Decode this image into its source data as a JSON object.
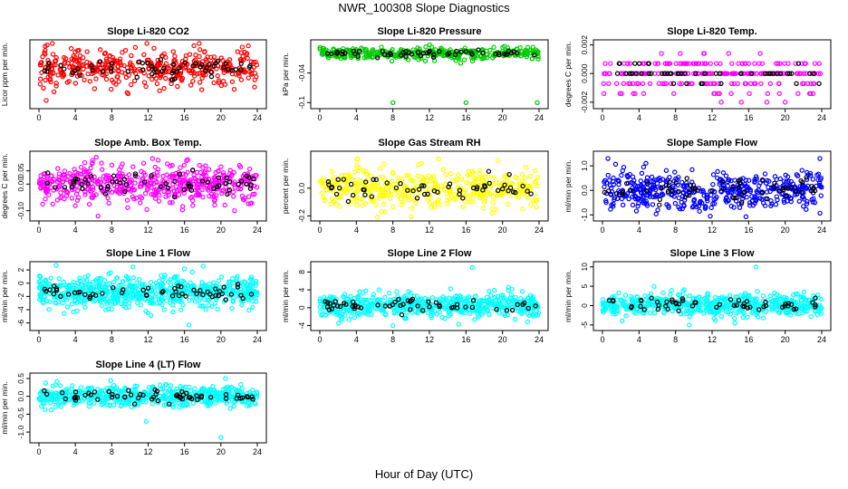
{
  "figure": {
    "title": "NWR_100308  Slope Diagnostics",
    "xlabel": "Hour of Day (UTC)"
  },
  "chart_data": [
    {
      "type": "scatter",
      "title": "Slope Li-820 CO2",
      "ylabel": "Licor ppm per min.",
      "xlim": [
        0,
        24
      ],
      "xticks": [
        0,
        4,
        8,
        12,
        16,
        20,
        24
      ],
      "ylim": [
        -0.125,
        0.075
      ],
      "yticks": [],
      "color": "#ff0000",
      "center": -0.005,
      "spread": 0.03,
      "n": 420,
      "black_n": 60,
      "series": [
        {
          "name": "",
          "points": [
            [
              0.9,
              0.07
            ],
            [
              0.8,
              -0.11
            ],
            [
              0.6,
              0.045
            ],
            [
              0.5,
              -0.07
            ],
            [
              1.0,
              0.02
            ]
          ]
        }
      ]
    },
    {
      "type": "scatter",
      "title": "Slope Li-820 Pressure",
      "ylabel": "kPa per min.",
      "xlim": [
        0,
        24
      ],
      "xticks": [
        0,
        4,
        8,
        12,
        16,
        20,
        24
      ],
      "ylim": [
        -0.105,
        0.02
      ],
      "yticks": [
        -0.1,
        -0.04
      ],
      "color": "#00cc00",
      "center": 0.0,
      "spread": 0.006,
      "n": 330,
      "black_n": 55,
      "series": [
        {
          "name": "",
          "points": [
            [
              8.0,
              -0.1
            ],
            [
              16.0,
              -0.1
            ],
            [
              23.8,
              -0.1
            ]
          ]
        }
      ]
    },
    {
      "type": "scatter",
      "title": "Slope Li-820 Temp.",
      "ylabel": "degrees C per min.",
      "xlim": [
        0,
        24
      ],
      "xticks": [
        0,
        4,
        8,
        12,
        16,
        20,
        24
      ],
      "ylim": [
        -0.0022,
        0.0021
      ],
      "yticks": [
        -0.002,
        0.0,
        0.002
      ],
      "yticklabels": [
        "-0.002",
        "0.000",
        "0.002"
      ],
      "color": "#ff00ff",
      "levels": [
        0.0,
        0.0007,
        -0.0007,
        -0.0014,
        0.0014
      ],
      "n": 260,
      "black_n": 50,
      "series": [
        {
          "name": "",
          "points": [
            [
              13.0,
              -0.002
            ],
            [
              15.2,
              -0.002
            ],
            [
              18.0,
              -0.002
            ],
            [
              20.0,
              -0.002
            ]
          ]
        }
      ]
    },
    {
      "type": "scatter",
      "title": "Slope Amb. Box Temp.",
      "ylabel": "degrees C per min.",
      "xlim": [
        0,
        24
      ],
      "xticks": [
        0,
        4,
        8,
        12,
        16,
        20,
        24
      ],
      "ylim": [
        -0.125,
        0.11
      ],
      "yticks": [
        -0.1,
        0.0,
        0.05
      ],
      "yticklabels": [
        "-0.10",
        "0.00",
        "0.05"
      ],
      "color": "#ff00ff",
      "center": 0.0,
      "spread": 0.035,
      "n": 520,
      "black_n": 60,
      "series": [
        {
          "name": "",
          "points": [
            [
              6.5,
              -0.12
            ],
            [
              13.1,
              0.09
            ],
            [
              21.5,
              -0.1
            ]
          ]
        }
      ]
    },
    {
      "type": "scatter",
      "title": "Slope Gas Stream RH",
      "ylabel": "percent per min.",
      "xlim": [
        0,
        24
      ],
      "xticks": [
        0,
        4,
        8,
        12,
        16,
        20,
        24
      ],
      "ylim": [
        -0.21,
        0.24
      ],
      "yticks": [
        -0.2,
        0.0
      ],
      "yticklabels": [
        "-0.2",
        "0.0"
      ],
      "color": "#ffff00",
      "center": 0.0,
      "spread": 0.07,
      "n": 420,
      "black_n": 55,
      "series": [
        {
          "name": "",
          "points": [
            [
              4.1,
              0.21
            ],
            [
              13.0,
              0.21
            ],
            [
              19.5,
              0.2
            ]
          ]
        }
      ]
    },
    {
      "type": "scatter",
      "title": "Slope Sample Flow",
      "ylabel": "ml/min per min.",
      "xlim": [
        0,
        24
      ],
      "xticks": [
        0,
        4,
        8,
        12,
        16,
        20,
        24
      ],
      "ylim": [
        -1.1,
        1.45
      ],
      "yticks": [
        -1.0,
        0.0,
        1.0
      ],
      "yticklabels": [
        "-1.0",
        "0.0",
        "1.0"
      ],
      "color": "#0000ff",
      "center": 0.0,
      "spread": 0.38,
      "n": 470,
      "black_n": 60,
      "series": [
        {
          "name": "",
          "points": [
            [
              0.6,
              1.3
            ],
            [
              11.8,
              -1.05
            ],
            [
              23.8,
              1.3
            ]
          ]
        }
      ]
    },
    {
      "type": "scatter",
      "title": "Slope Line 1 Flow",
      "ylabel": "ml/min per min.",
      "xlim": [
        0,
        24
      ],
      "xticks": [
        0,
        4,
        8,
        12,
        16,
        20,
        24
      ],
      "ylim": [
        -6.6,
        2.7
      ],
      "yticks": [
        -6,
        -4,
        -2,
        0,
        2
      ],
      "color": "#00ffff",
      "center": -1.3,
      "spread": 1.2,
      "n": 620,
      "black_n": 55,
      "series": [
        {
          "name": "",
          "points": [
            [
              16.5,
              -6.3
            ],
            [
              4.2,
              -4.2
            ],
            [
              12.0,
              -4.5
            ]
          ]
        }
      ]
    },
    {
      "type": "scatter",
      "title": "Slope Line 2 Flow",
      "ylabel": "ml/min per min.",
      "xlim": [
        0,
        24
      ],
      "xticks": [
        0,
        4,
        8,
        12,
        16,
        20,
        24
      ],
      "ylim": [
        -4.3,
        9.5
      ],
      "yticks": [
        -4,
        0,
        4,
        8
      ],
      "color": "#00ffff",
      "center": 0.5,
      "spread": 1.3,
      "n": 560,
      "black_n": 55,
      "series": [
        {
          "name": "",
          "points": [
            [
              16.7,
              9.0
            ],
            [
              8.0,
              -4.0
            ],
            [
              15.2,
              -3.7
            ]
          ]
        }
      ]
    },
    {
      "type": "scatter",
      "title": "Slope Line 3 Flow",
      "ylabel": "ml/min per min.",
      "xlim": [
        0,
        24
      ],
      "xticks": [
        0,
        4,
        8,
        12,
        16,
        20,
        24
      ],
      "ylim": [
        -5.5,
        10.4
      ],
      "yticks": [
        -5,
        0,
        5,
        10
      ],
      "color": "#00ffff",
      "center": 0.3,
      "spread": 1.4,
      "n": 560,
      "black_n": 55,
      "series": [
        {
          "name": "",
          "points": [
            [
              16.8,
              10.0
            ],
            [
              9.5,
              -5.0
            ],
            [
              14.5,
              -4.5
            ]
          ]
        }
      ]
    },
    {
      "type": "scatter",
      "title": "Slope Line 4 (LT) Flow",
      "ylabel": "ml/min per min.",
      "xlim": [
        0,
        24
      ],
      "xticks": [
        0,
        4,
        8,
        12,
        16,
        20,
        24
      ],
      "ylim": [
        -1.2,
        0.55
      ],
      "yticks": [
        -1.0,
        -0.5,
        0.0,
        0.5
      ],
      "yticklabels": [
        "-1.0",
        "-0.5",
        "0.0",
        "0.5"
      ],
      "color": "#00ffff",
      "center": 0.0,
      "spread": 0.13,
      "n": 540,
      "black_n": 60,
      "series": [
        {
          "name": "",
          "points": [
            [
              20.0,
              -1.15
            ],
            [
              11.8,
              -0.7
            ],
            [
              20.5,
              0.5
            ]
          ]
        }
      ]
    }
  ]
}
